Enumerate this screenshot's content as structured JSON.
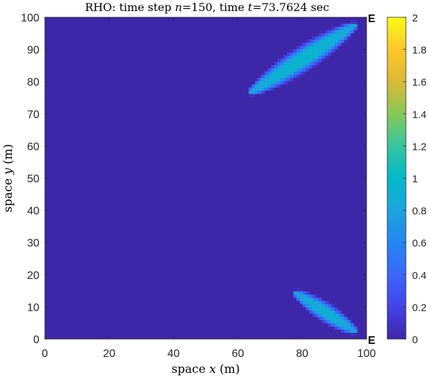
{
  "chart_data": {
    "type": "heatmap",
    "title": {
      "prefix": "RHO: time step ",
      "n_symbol": "n",
      "n_value": "=150, time ",
      "t_symbol": "t",
      "t_value": "=73.7624 sec"
    },
    "xlabel": {
      "prefix": "space ",
      "symbol": "x",
      "suffix": " (m)"
    },
    "ylabel": {
      "prefix": "space ",
      "symbol": "y",
      "suffix": " (m)"
    },
    "xlim": [
      0,
      100
    ],
    "ylim": [
      0,
      100
    ],
    "x_ticks": [
      "0",
      "20",
      "40",
      "60",
      "80",
      "100"
    ],
    "y_ticks": [
      "0",
      "10",
      "20",
      "30",
      "40",
      "50",
      "60",
      "70",
      "80",
      "90",
      "100"
    ],
    "x_tick_values": [
      0,
      20,
      40,
      60,
      80,
      100
    ],
    "y_tick_values": [
      0,
      10,
      20,
      30,
      40,
      50,
      60,
      70,
      80,
      90,
      100
    ],
    "colorbar": {
      "range": [
        0,
        2
      ],
      "ticks": [
        "0",
        "0.2",
        "0.4",
        "0.6",
        "0.8",
        "1",
        "1.2",
        "1.4",
        "1.6",
        "1.8",
        "2"
      ],
      "tick_values": [
        0,
        0.2,
        0.4,
        0.6,
        0.8,
        1,
        1.2,
        1.4,
        1.6,
        1.8,
        2
      ],
      "colormap": "parula"
    },
    "background_value": 0,
    "boundary_markers": [
      {
        "label": "E",
        "x": 100,
        "y": 100
      },
      {
        "label": "E",
        "x": 100,
        "y": 0
      }
    ],
    "regions": [
      {
        "name": "upper plume",
        "start": [
          64,
          77
        ],
        "end": [
          98,
          99
        ],
        "half_width": 3.8,
        "peak_value": 0.95
      },
      {
        "name": "lower plume",
        "start": [
          78,
          15
        ],
        "end": [
          98,
          2
        ],
        "half_width": 2.8,
        "peak_value": 0.9
      }
    ]
  }
}
